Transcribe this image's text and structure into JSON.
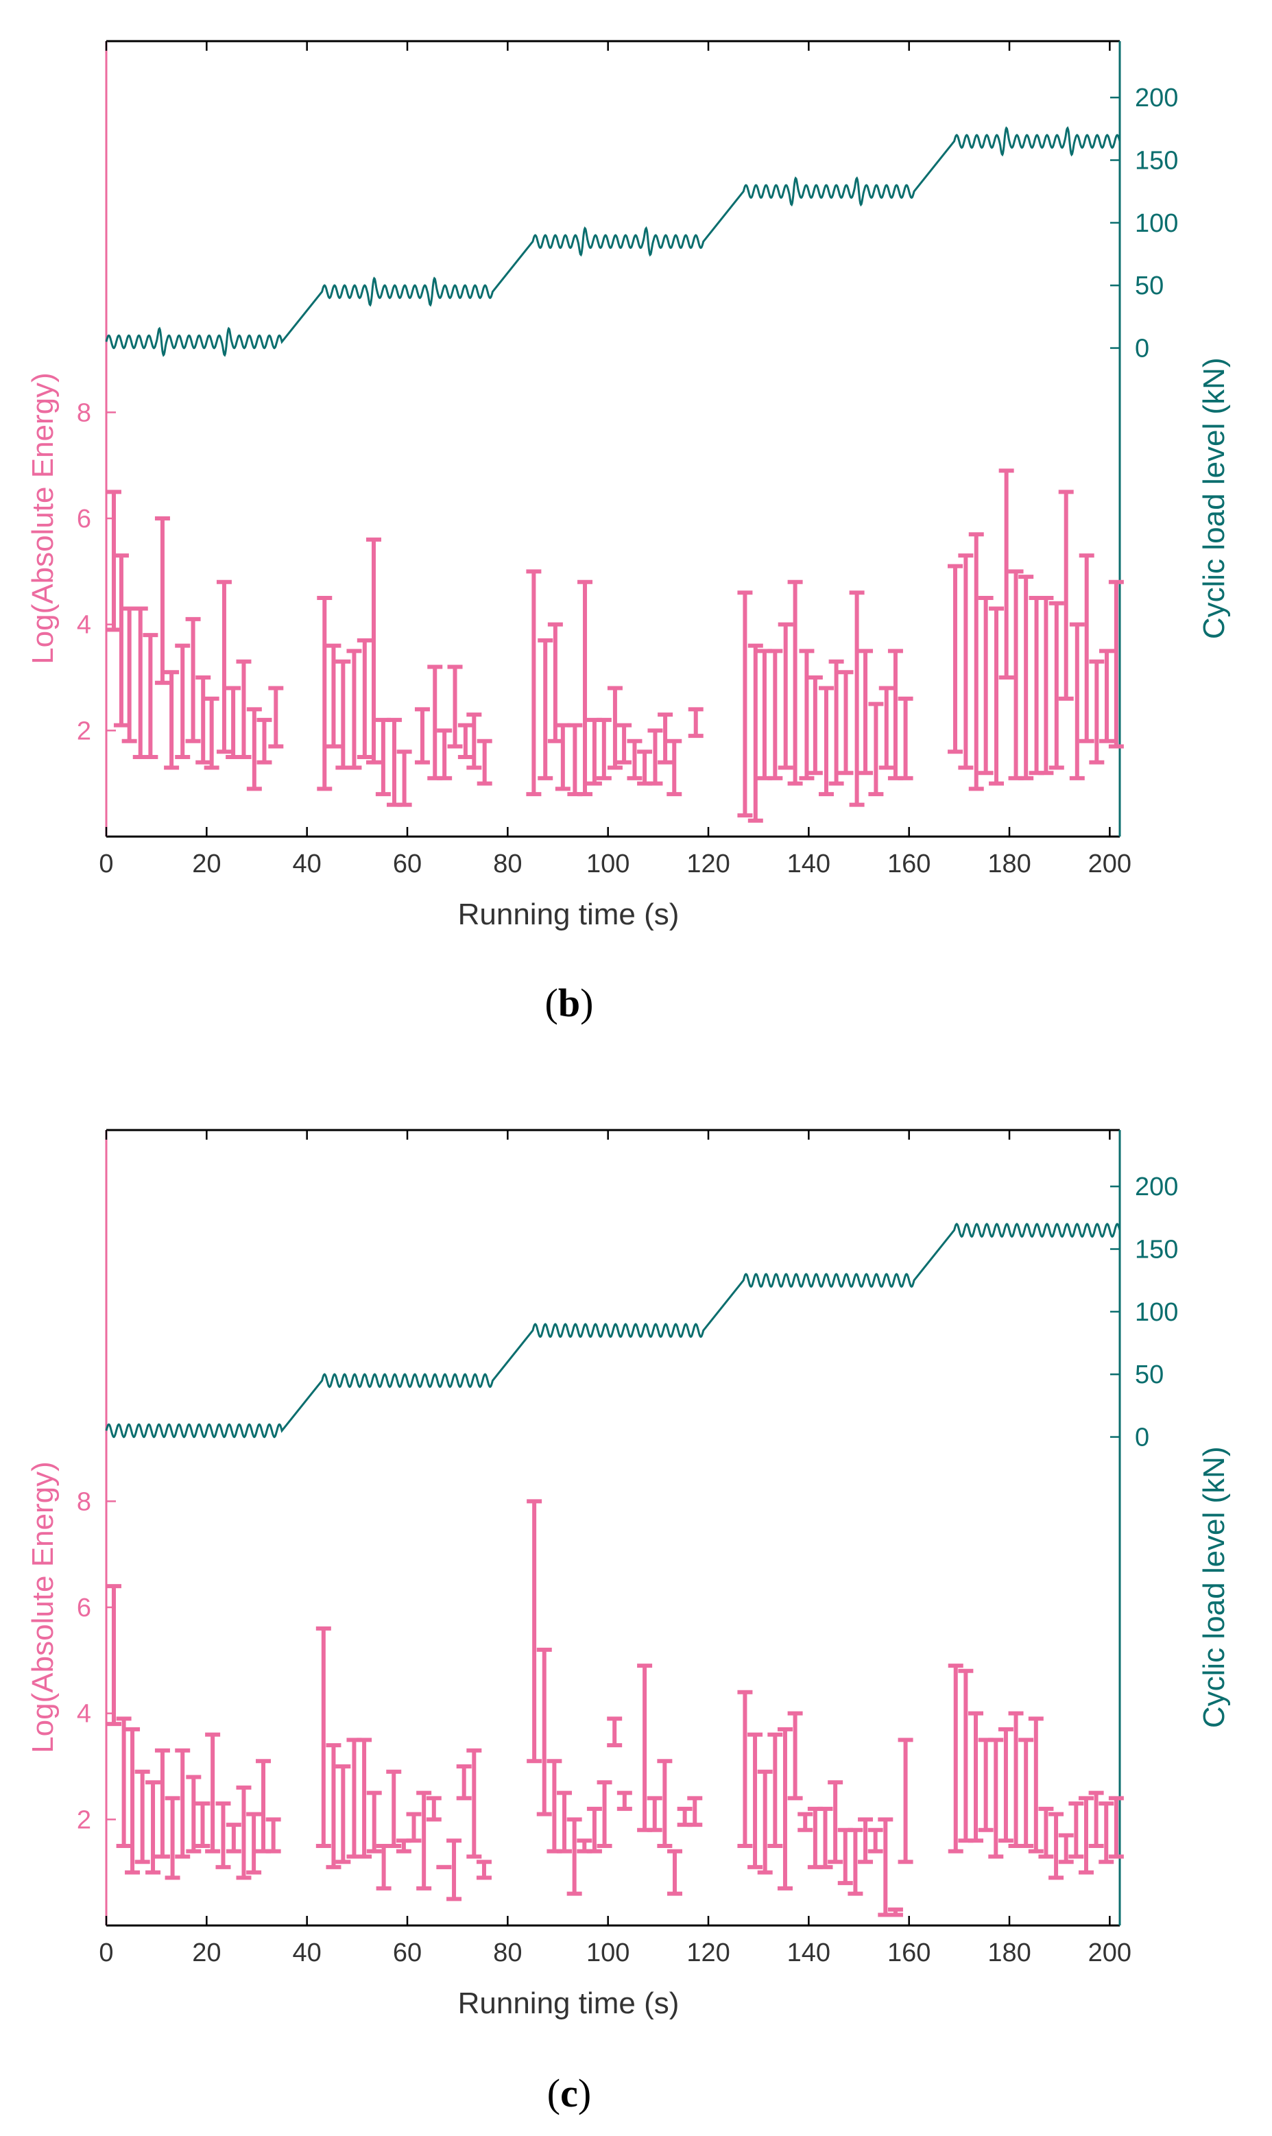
{
  "colors": {
    "energy": "#ec6b9f",
    "load": "#0b6e6e",
    "axis": "#000000",
    "text": "#333333"
  },
  "panels": [
    {
      "open": "(",
      "letter": "b",
      "close": ")"
    },
    {
      "open": "(",
      "letter": "c",
      "close": ")"
    }
  ],
  "chart_data": [
    {
      "type": "errorbar+line",
      "panel": "b",
      "xlabel": "Running time (s)",
      "ylabel_left": "Log(Absolute Energy)",
      "ylabel_right": "Cyclic load level (kN)",
      "xlim": [
        0,
        202
      ],
      "xticks": [
        0,
        20,
        40,
        60,
        80,
        100,
        120,
        140,
        160,
        180,
        200
      ],
      "ylim_left": [
        0,
        15
      ],
      "yticks_left": [
        2,
        4,
        6,
        8
      ],
      "ylim_right": [
        -390,
        245
      ],
      "yticks_right": [
        0,
        50,
        100,
        150,
        200
      ],
      "energy_ranges": [
        [
          1.5,
          6.5,
          3.9
        ],
        [
          3.0,
          5.3,
          2.1
        ],
        [
          4.6,
          4.3,
          1.8
        ],
        [
          6.8,
          4.3,
          1.5
        ],
        [
          8.8,
          3.8,
          1.5
        ],
        [
          11.2,
          6.0,
          2.9
        ],
        [
          13.0,
          3.1,
          1.3
        ],
        [
          15.2,
          3.6,
          1.5
        ],
        [
          17.3,
          4.1,
          1.8
        ],
        [
          19.3,
          3.0,
          1.4
        ],
        [
          21.0,
          2.6,
          1.3
        ],
        [
          23.5,
          4.8,
          1.6
        ],
        [
          25.3,
          2.8,
          1.5
        ],
        [
          27.4,
          3.3,
          1.5
        ],
        [
          29.5,
          2.4,
          0.9
        ],
        [
          31.5,
          2.2,
          1.4
        ],
        [
          33.8,
          2.8,
          1.7
        ],
        [
          43.5,
          4.5,
          0.9
        ],
        [
          45.3,
          3.6,
          1.7
        ],
        [
          47.2,
          3.3,
          1.3
        ],
        [
          49.4,
          3.5,
          1.3
        ],
        [
          51.5,
          3.7,
          1.5
        ],
        [
          53.3,
          5.6,
          1.4
        ],
        [
          55.2,
          2.2,
          0.8
        ],
        [
          57.4,
          2.2,
          0.6
        ],
        [
          59.4,
          1.6,
          0.6
        ],
        [
          63.0,
          2.4,
          1.4
        ],
        [
          65.5,
          3.2,
          1.1
        ],
        [
          67.4,
          2.0,
          1.1
        ],
        [
          69.5,
          3.2,
          1.7
        ],
        [
          71.6,
          2.1,
          1.5
        ],
        [
          73.3,
          2.3,
          1.3
        ],
        [
          75.4,
          1.8,
          1.0
        ],
        [
          85.2,
          5.0,
          0.8
        ],
        [
          87.5,
          3.7,
          1.1
        ],
        [
          89.5,
          4.0,
          1.8
        ],
        [
          91.0,
          2.1,
          0.9
        ],
        [
          93.4,
          2.1,
          0.8
        ],
        [
          95.4,
          4.8,
          0.8
        ],
        [
          97.3,
          2.2,
          1.0
        ],
        [
          99.2,
          2.2,
          1.1
        ],
        [
          101.4,
          2.8,
          1.3
        ],
        [
          103.2,
          2.1,
          1.4
        ],
        [
          105.3,
          1.8,
          1.1
        ],
        [
          107.3,
          1.6,
          1.0
        ],
        [
          109.4,
          2.0,
          1.0
        ],
        [
          111.4,
          2.3,
          1.4
        ],
        [
          113.2,
          1.8,
          0.8
        ],
        [
          117.5,
          2.4,
          1.9
        ],
        [
          127.3,
          4.6,
          0.4
        ],
        [
          129.4,
          3.6,
          0.3
        ],
        [
          131.2,
          3.5,
          1.1
        ],
        [
          133.3,
          3.5,
          1.1
        ],
        [
          135.4,
          4.0,
          1.3
        ],
        [
          137.3,
          4.8,
          1.0
        ],
        [
          139.6,
          3.5,
          1.1
        ],
        [
          141.3,
          3.0,
          1.2
        ],
        [
          143.5,
          2.8,
          0.8
        ],
        [
          145.5,
          3.3,
          1.0
        ],
        [
          147.4,
          3.1,
          1.2
        ],
        [
          149.6,
          4.6,
          0.6
        ],
        [
          151.3,
          3.5,
          1.2
        ],
        [
          153.4,
          2.5,
          0.8
        ],
        [
          155.5,
          2.8,
          1.3
        ],
        [
          157.3,
          3.5,
          1.1
        ],
        [
          159.3,
          2.6,
          1.1
        ],
        [
          169.2,
          5.1,
          1.6
        ],
        [
          171.3,
          5.3,
          1.3
        ],
        [
          173.4,
          5.7,
          0.9
        ],
        [
          175.3,
          4.5,
          1.2
        ],
        [
          177.4,
          4.3,
          1.0
        ],
        [
          179.4,
          6.9,
          3.0
        ],
        [
          181.3,
          5.0,
          1.1
        ],
        [
          183.3,
          4.9,
          1.1
        ],
        [
          185.4,
          4.5,
          1.2
        ],
        [
          187.3,
          4.5,
          1.2
        ],
        [
          189.4,
          4.4,
          1.3
        ],
        [
          191.3,
          6.5,
          2.6
        ],
        [
          193.5,
          4.0,
          1.1
        ],
        [
          195.4,
          5.3,
          1.8
        ],
        [
          197.4,
          3.3,
          1.4
        ],
        [
          199.4,
          3.5,
          1.8
        ],
        [
          201.3,
          4.8,
          1.7
        ]
      ],
      "load_segments": [
        {
          "from": 0,
          "to": 35,
          "level": 5,
          "type": "hold"
        },
        {
          "from": 35,
          "to": 43,
          "type": "ramp"
        },
        {
          "from": 43,
          "to": 77,
          "level": 45,
          "type": "hold"
        },
        {
          "from": 77,
          "to": 85,
          "type": "ramp"
        },
        {
          "from": 85,
          "to": 119,
          "level": 85,
          "type": "hold"
        },
        {
          "from": 119,
          "to": 127,
          "type": "ramp"
        },
        {
          "from": 127,
          "to": 161,
          "level": 125,
          "type": "hold"
        },
        {
          "from": 161,
          "to": 169,
          "type": "ramp"
        },
        {
          "from": 169,
          "to": 202,
          "level": 165,
          "type": "hold"
        }
      ],
      "load_amplitude": 5,
      "load_period": 2.0,
      "load_spikes": [
        11,
        24,
        53,
        65,
        95,
        108,
        137,
        150,
        179,
        192
      ],
      "load_spike_height": 10
    },
    {
      "type": "errorbar+line",
      "panel": "c",
      "xlabel": "Running time (s)",
      "ylabel_left": "Log(Absolute Energy)",
      "ylabel_right": "Cyclic load level (kN)",
      "xlim": [
        0,
        202
      ],
      "xticks": [
        0,
        20,
        40,
        60,
        80,
        100,
        120,
        140,
        160,
        180,
        200
      ],
      "ylim_left": [
        0,
        15
      ],
      "yticks_left": [
        2,
        4,
        6,
        8
      ],
      "ylim_right": [
        -390,
        245
      ],
      "yticks_right": [
        0,
        50,
        100,
        150,
        200
      ],
      "energy_ranges": [
        [
          1.5,
          6.4,
          3.8
        ],
        [
          3.5,
          3.9,
          1.5
        ],
        [
          5.2,
          3.7,
          1.0
        ],
        [
          7.2,
          2.9,
          1.2
        ],
        [
          9.3,
          2.7,
          1.0
        ],
        [
          11.2,
          3.3,
          1.3
        ],
        [
          13.2,
          2.4,
          0.9
        ],
        [
          15.2,
          3.3,
          1.3
        ],
        [
          17.4,
          2.8,
          1.4
        ],
        [
          19.2,
          2.3,
          1.5
        ],
        [
          21.2,
          3.6,
          1.4
        ],
        [
          23.3,
          2.3,
          1.1
        ],
        [
          25.4,
          1.9,
          1.4
        ],
        [
          27.4,
          2.6,
          0.9
        ],
        [
          29.4,
          2.1,
          1.0
        ],
        [
          31.3,
          3.1,
          1.4
        ],
        [
          33.3,
          2.0,
          1.4
        ],
        [
          43.3,
          5.6,
          1.5
        ],
        [
          45.3,
          3.4,
          1.1
        ],
        [
          47.2,
          3.0,
          1.2
        ],
        [
          49.4,
          3.5,
          1.3
        ],
        [
          51.4,
          3.5,
          1.3
        ],
        [
          53.4,
          2.5,
          1.4
        ],
        [
          55.3,
          1.5,
          0.7
        ],
        [
          57.3,
          2.9,
          1.5
        ],
        [
          59.3,
          1.6,
          1.4
        ],
        [
          61.3,
          2.1,
          1.6
        ],
        [
          63.3,
          2.5,
          0.7
        ],
        [
          65.3,
          2.4,
          2.0
        ],
        [
          67.3,
          1.1,
          1.1
        ],
        [
          69.3,
          1.6,
          0.5
        ],
        [
          71.3,
          3.0,
          2.4
        ],
        [
          73.3,
          3.3,
          1.3
        ],
        [
          75.3,
          1.2,
          0.9
        ],
        [
          85.3,
          8.0,
          3.1
        ],
        [
          87.3,
          5.2,
          2.1
        ],
        [
          89.3,
          3.1,
          1.4
        ],
        [
          91.3,
          2.5,
          1.4
        ],
        [
          93.3,
          2.0,
          0.6
        ],
        [
          95.3,
          1.6,
          1.4
        ],
        [
          97.3,
          2.2,
          1.4
        ],
        [
          99.3,
          2.7,
          1.5
        ],
        [
          101.3,
          3.9,
          3.4
        ],
        [
          103.3,
          2.5,
          2.2
        ],
        [
          107.3,
          4.9,
          1.8
        ],
        [
          109.3,
          2.4,
          1.8
        ],
        [
          111.3,
          3.1,
          1.5
        ],
        [
          113.3,
          1.4,
          0.6
        ],
        [
          115.3,
          2.2,
          1.9
        ],
        [
          117.3,
          2.4,
          1.9
        ],
        [
          127.3,
          4.4,
          1.5
        ],
        [
          129.3,
          3.6,
          1.1
        ],
        [
          131.3,
          2.9,
          1.0
        ],
        [
          133.3,
          3.6,
          1.5
        ],
        [
          135.3,
          3.7,
          0.7
        ],
        [
          137.3,
          4.0,
          2.4
        ],
        [
          139.3,
          2.1,
          1.8
        ],
        [
          141.3,
          2.2,
          1.1
        ],
        [
          143.3,
          2.2,
          1.1
        ],
        [
          145.3,
          2.7,
          1.2
        ],
        [
          147.3,
          1.8,
          0.8
        ],
        [
          149.3,
          1.8,
          0.6
        ],
        [
          151.3,
          2.0,
          1.2
        ],
        [
          153.3,
          1.8,
          1.4
        ],
        [
          155.3,
          2.0,
          0.2
        ],
        [
          157.3,
          0.3,
          0.2
        ],
        [
          159.3,
          3.5,
          1.2
        ],
        [
          169.3,
          4.9,
          1.4
        ],
        [
          171.3,
          4.8,
          1.6
        ],
        [
          173.3,
          4.0,
          1.6
        ],
        [
          175.3,
          3.5,
          1.8
        ],
        [
          177.3,
          3.5,
          1.3
        ],
        [
          179.3,
          3.7,
          1.6
        ],
        [
          181.3,
          4.0,
          1.5
        ],
        [
          183.3,
          3.5,
          1.5
        ],
        [
          185.3,
          3.9,
          1.4
        ],
        [
          187.3,
          2.2,
          1.3
        ],
        [
          189.3,
          2.1,
          0.9
        ],
        [
          191.3,
          1.7,
          1.2
        ],
        [
          193.3,
          2.3,
          1.3
        ],
        [
          195.3,
          2.4,
          1.0
        ],
        [
          197.3,
          2.5,
          1.5
        ],
        [
          199.3,
          2.3,
          1.2
        ],
        [
          201.3,
          2.4,
          1.3
        ]
      ],
      "load_segments": [
        {
          "from": 0,
          "to": 35,
          "level": 5,
          "type": "hold"
        },
        {
          "from": 35,
          "to": 43,
          "type": "ramp"
        },
        {
          "from": 43,
          "to": 77,
          "level": 45,
          "type": "hold"
        },
        {
          "from": 77,
          "to": 85,
          "type": "ramp"
        },
        {
          "from": 85,
          "to": 119,
          "level": 85,
          "type": "hold"
        },
        {
          "from": 119,
          "to": 127,
          "type": "ramp"
        },
        {
          "from": 127,
          "to": 161,
          "level": 125,
          "type": "hold"
        },
        {
          "from": 161,
          "to": 169,
          "type": "ramp"
        },
        {
          "from": 169,
          "to": 202,
          "level": 165,
          "type": "hold"
        }
      ],
      "load_amplitude": 5,
      "load_period": 2.0,
      "load_spikes": [],
      "load_spike_height": 0
    }
  ]
}
